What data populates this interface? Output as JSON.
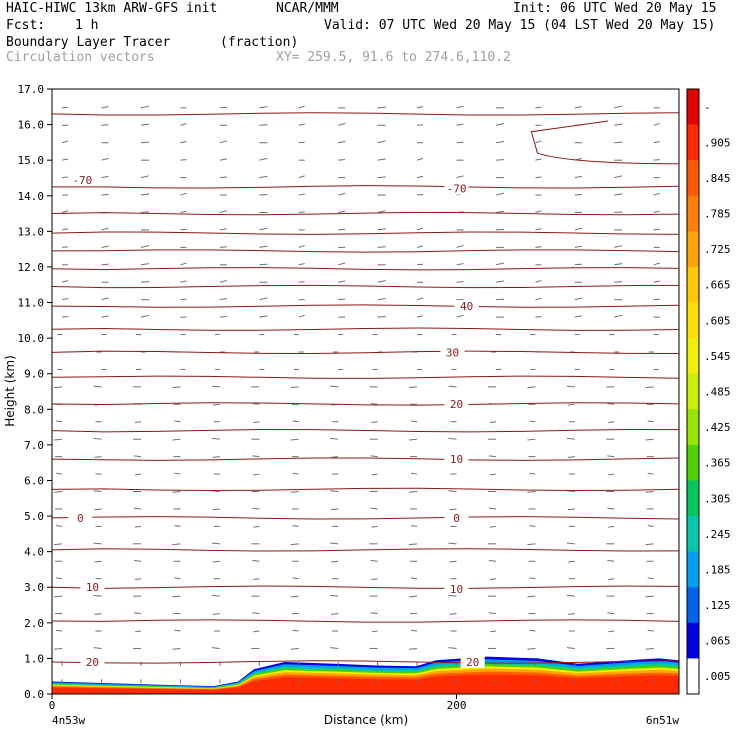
{
  "header": {
    "title_left": "HAIC-HIWC 13km ARW-GFS init",
    "org": "NCAR/MMM",
    "init": "Init: 06 UTC Wed 20 May 15",
    "fcst_label": "Fcst:",
    "fcst_value": "1 h",
    "valid": "Valid: 07 UTC Wed 20 May 15 (04 LST Wed 20 May 15)",
    "field_name": "Boundary Layer Tracer",
    "field_units": "(fraction)",
    "vectors_label": "Circulation vectors",
    "xy_label": "XY= 259.5, 91.6 to 274.6,110.2"
  },
  "chart_data": {
    "type": "cross-section",
    "xlabel": "Distance (km)",
    "ylabel": "Height (km)",
    "xlim": [
      0,
      310
    ],
    "ylim": [
      0,
      17
    ],
    "xticks": [
      {
        "value": 0,
        "label": "0"
      },
      {
        "value": 200,
        "label": "200"
      }
    ],
    "x_endpoints": {
      "left": "4n53w",
      "right": "6n51w"
    },
    "yticks": [
      "0.0",
      "1.0",
      "2.0",
      "3.0",
      "4.0",
      "5.0",
      "6.0",
      "7.0",
      "8.0",
      "9.0",
      "10.0",
      "11.0",
      "12.0",
      "13.0",
      "14.0",
      "15.0",
      "16.0",
      "17.0"
    ],
    "contours": [
      {
        "label": "20",
        "height_km": 0.9,
        "labeled": [
          [
            20,
            0.9
          ],
          [
            208,
            0.9
          ]
        ]
      },
      {
        "label": "10",
        "height_km": 3.0,
        "labeled": [
          [
            20,
            3.0
          ],
          [
            200,
            2.95
          ]
        ]
      },
      {
        "label": "",
        "height_km": 2.05,
        "labeled": []
      },
      {
        "label": "0",
        "height_km": 4.95,
        "labeled": [
          [
            14,
            4.95
          ],
          [
            200,
            4.95
          ]
        ]
      },
      {
        "label": "",
        "height_km": 4.05,
        "labeled": []
      },
      {
        "label": "",
        "height_km": 5.75,
        "labeled": []
      },
      {
        "label": "10",
        "height_km": 6.6,
        "labeled": [
          [
            200,
            6.6
          ]
        ]
      },
      {
        "label": "",
        "height_km": 7.4,
        "labeled": []
      },
      {
        "label": "20",
        "height_km": 8.15,
        "labeled": [
          [
            200,
            8.15
          ]
        ]
      },
      {
        "label": "",
        "height_km": 8.9,
        "labeled": []
      },
      {
        "label": "30",
        "height_km": 9.6,
        "labeled": [
          [
            198,
            9.6
          ]
        ]
      },
      {
        "label": "",
        "height_km": 10.25,
        "labeled": []
      },
      {
        "label": "40",
        "height_km": 10.9,
        "labeled": [
          [
            205,
            10.9
          ]
        ]
      },
      {
        "label": "",
        "height_km": 11.45,
        "labeled": []
      },
      {
        "label": "",
        "height_km": 11.95,
        "labeled": []
      },
      {
        "label": "",
        "height_km": 12.45,
        "labeled": []
      },
      {
        "label": "",
        "height_km": 12.95,
        "labeled": []
      },
      {
        "label": "",
        "height_km": 13.5,
        "labeled": []
      },
      {
        "label": "-70",
        "height_km": 14.25,
        "labeled": [
          [
            15,
            14.45
          ],
          [
            200,
            14.2
          ]
        ]
      },
      {
        "label": "",
        "height_km": 16.3,
        "labeled": []
      }
    ],
    "tracer_surface_km": [
      [
        0,
        0.35
      ],
      [
        30,
        0.3
      ],
      [
        60,
        0.25
      ],
      [
        80,
        0.22
      ],
      [
        92,
        0.35
      ],
      [
        100,
        0.7
      ],
      [
        115,
        0.9
      ],
      [
        140,
        0.85
      ],
      [
        160,
        0.8
      ],
      [
        180,
        0.78
      ],
      [
        190,
        0.95
      ],
      [
        215,
        1.05
      ],
      [
        240,
        1.0
      ],
      [
        260,
        0.85
      ],
      [
        285,
        0.95
      ],
      [
        300,
        1.0
      ],
      [
        310,
        0.95
      ]
    ],
    "colorbar": {
      "labels": [
        "-",
        ".905",
        ".845",
        ".785",
        ".725",
        ".665",
        ".605",
        ".545",
        ".485",
        ".425",
        ".365",
        ".305",
        ".245",
        ".185",
        ".125",
        ".065",
        ".005"
      ],
      "colors": [
        "#e60000",
        "#ff2a00",
        "#ff5a00",
        "#ff8000",
        "#ffa500",
        "#ffc800",
        "#ffe000",
        "#f0f000",
        "#c8f000",
        "#96e600",
        "#50d200",
        "#00c85a",
        "#00c8aa",
        "#00a0f0",
        "#0064f0",
        "#0000e6",
        "#ffffff"
      ]
    }
  }
}
